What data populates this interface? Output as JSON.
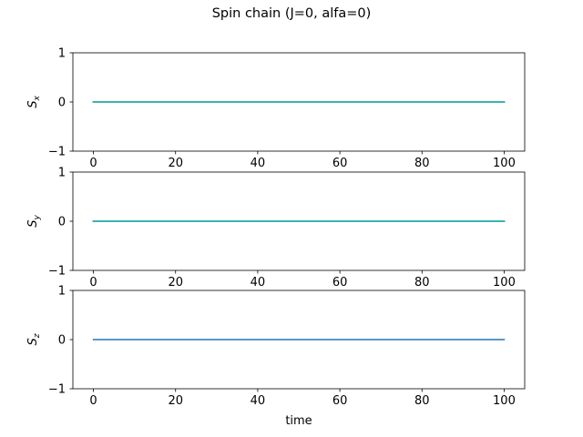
{
  "figure": {
    "title": "Spin chain (J=0, alfa=0)"
  },
  "chart_data": [
    {
      "type": "line",
      "ylabel": "S",
      "ylabel_sub": "x",
      "xlabel": "",
      "xlim": [
        -5,
        105
      ],
      "ylim": [
        -1,
        1
      ],
      "xticks": [
        0,
        20,
        40,
        60,
        80,
        100
      ],
      "yticks": [
        -1,
        0,
        1
      ],
      "xtick_labels": [
        "0",
        "20",
        "40",
        "60",
        "80",
        "100"
      ],
      "ytick_labels": [
        "−1",
        "0",
        "1"
      ],
      "grid": false,
      "series": [
        {
          "color": "#1f77b4",
          "x": [
            0,
            100
          ],
          "y": [
            0,
            0
          ]
        },
        {
          "color": "#ff7f0e",
          "x": [
            0,
            100
          ],
          "y": [
            0,
            0
          ]
        },
        {
          "color": "#2ca02c",
          "x": [
            0,
            100
          ],
          "y": [
            0,
            0
          ]
        },
        {
          "color": "#d62728",
          "x": [
            0,
            100
          ],
          "y": [
            0,
            0
          ]
        },
        {
          "color": "#9467bd",
          "x": [
            0,
            100
          ],
          "y": [
            0,
            0
          ]
        },
        {
          "color": "#8c564b",
          "x": [
            0,
            100
          ],
          "y": [
            0,
            0
          ]
        },
        {
          "color": "#e377c2",
          "x": [
            0,
            100
          ],
          "y": [
            0,
            0
          ]
        },
        {
          "color": "#7f7f7f",
          "x": [
            0,
            100
          ],
          "y": [
            0,
            0
          ]
        },
        {
          "color": "#bcbd22",
          "x": [
            0,
            100
          ],
          "y": [
            0,
            0
          ]
        },
        {
          "color": "#17becf",
          "x": [
            0,
            100
          ],
          "y": [
            0,
            0
          ]
        }
      ]
    },
    {
      "type": "line",
      "ylabel": "S",
      "ylabel_sub": "y",
      "xlabel": "",
      "xlim": [
        -5,
        105
      ],
      "ylim": [
        -1,
        1
      ],
      "xticks": [
        0,
        20,
        40,
        60,
        80,
        100
      ],
      "yticks": [
        -1,
        0,
        1
      ],
      "xtick_labels": [
        "0",
        "20",
        "40",
        "60",
        "80",
        "100"
      ],
      "ytick_labels": [
        "−1",
        "0",
        "1"
      ],
      "grid": false,
      "series": [
        {
          "color": "#1f77b4",
          "x": [
            0,
            100
          ],
          "y": [
            0,
            0
          ]
        },
        {
          "color": "#ff7f0e",
          "x": [
            0,
            100
          ],
          "y": [
            0,
            0
          ]
        },
        {
          "color": "#2ca02c",
          "x": [
            0,
            100
          ],
          "y": [
            0,
            0
          ]
        },
        {
          "color": "#d62728",
          "x": [
            0,
            100
          ],
          "y": [
            0,
            0
          ]
        },
        {
          "color": "#9467bd",
          "x": [
            0,
            100
          ],
          "y": [
            0,
            0
          ]
        },
        {
          "color": "#8c564b",
          "x": [
            0,
            100
          ],
          "y": [
            0,
            0
          ]
        },
        {
          "color": "#e377c2",
          "x": [
            0,
            100
          ],
          "y": [
            0,
            0
          ]
        },
        {
          "color": "#7f7f7f",
          "x": [
            0,
            100
          ],
          "y": [
            0,
            0
          ]
        },
        {
          "color": "#bcbd22",
          "x": [
            0,
            100
          ],
          "y": [
            0,
            0
          ]
        },
        {
          "color": "#17becf",
          "x": [
            0,
            100
          ],
          "y": [
            0,
            0
          ]
        }
      ]
    },
    {
      "type": "line",
      "ylabel": "S",
      "ylabel_sub": "z",
      "xlabel": "time",
      "xlim": [
        -5,
        105
      ],
      "ylim": [
        -1,
        1
      ],
      "xticks": [
        0,
        20,
        40,
        60,
        80,
        100
      ],
      "yticks": [
        -1,
        0,
        1
      ],
      "xtick_labels": [
        "0",
        "20",
        "40",
        "60",
        "80",
        "100"
      ],
      "ytick_labels": [
        "−1",
        "0",
        "1"
      ],
      "grid": false,
      "series": [
        {
          "color": "#1f77b4",
          "x": [
            0,
            100
          ],
          "y": [
            0,
            0
          ]
        }
      ]
    }
  ]
}
